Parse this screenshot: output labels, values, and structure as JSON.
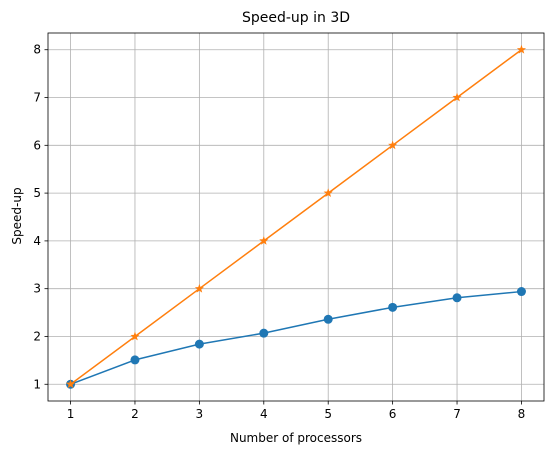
{
  "chart_data": {
    "type": "line",
    "title": "Speed-up in 3D",
    "xlabel": "Number of processors",
    "ylabel": "Speed-up",
    "x": [
      1,
      2,
      3,
      4,
      5,
      6,
      7,
      8
    ],
    "xlim": [
      0.65,
      8.35
    ],
    "ylim": [
      0.65,
      8.35
    ],
    "xticks": [
      "1",
      "2",
      "3",
      "4",
      "5",
      "6",
      "7",
      "8"
    ],
    "yticks": [
      "1",
      "2",
      "3",
      "4",
      "5",
      "6",
      "7",
      "8"
    ],
    "grid": true,
    "series": [
      {
        "values": [
          1.0,
          1.51,
          1.84,
          2.07,
          2.36,
          2.61,
          2.81,
          2.94
        ],
        "color": "#1f77b4",
        "marker": "circle"
      },
      {
        "values": [
          1,
          2,
          3,
          4,
          5,
          6,
          7,
          8
        ],
        "color": "#ff7f0e",
        "marker": "star"
      }
    ]
  }
}
